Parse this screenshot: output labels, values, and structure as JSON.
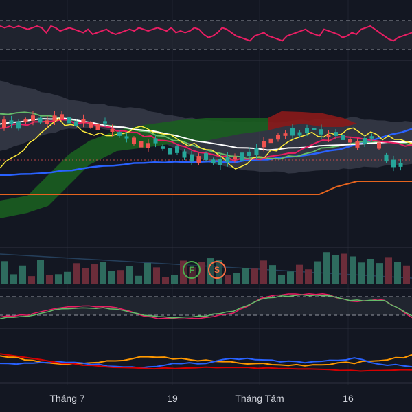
{
  "theme": {
    "background": "#131722",
    "pane_band": "#2a2e39",
    "separator": "#2f3240",
    "grid": "#1f2330",
    "rsi_line": "#e91e63",
    "candle_up": "#26a69a",
    "candle_down": "#ef5350",
    "cloud_bull": "#1b5e20",
    "cloud_bear": "#8b1a1a",
    "bb_band": "#4a4e5c",
    "ma_white": "#ffffff",
    "ma_green": "#66bb6a",
    "ma_pink": "#e91e63",
    "ma_yellow": "#ffeb3b",
    "ma_blue": "#2962ff",
    "ma_orange": "#e6641e",
    "volume_up": "#2e6b5e",
    "volume_down": "#6b2d3a",
    "stoch_k": "#e91e63",
    "stoch_d": "#66bb6a",
    "dmi_orange": "#ff9800",
    "dmi_blue": "#2962ff",
    "dmi_red": "#d50000"
  },
  "events": [
    {
      "letter": "F",
      "color": "#4caf50"
    },
    {
      "letter": "S",
      "color": "#ff7043"
    }
  ],
  "time_axis": [
    "Tháng 7",
    "19",
    "Tháng Tám",
    "16"
  ],
  "chart_data": [
    {
      "type": "line",
      "indicator": "oscillator",
      "series": [
        {
          "values": [
            64,
            63,
            64,
            63,
            64,
            63,
            62,
            63,
            64,
            63,
            60,
            64,
            63,
            61,
            62,
            63,
            62,
            61,
            60,
            62,
            59,
            60,
            61,
            62,
            60,
            59,
            60,
            61,
            62,
            61,
            63,
            62,
            61,
            62,
            63,
            62,
            61,
            63,
            60,
            61,
            60,
            61,
            63,
            62,
            59,
            57,
            58,
            60,
            63,
            62,
            60,
            58,
            57,
            56,
            55,
            58,
            59,
            60,
            58,
            57,
            56,
            55,
            58,
            59,
            60,
            61,
            62,
            60,
            59,
            58,
            62,
            61,
            60,
            59,
            57,
            58,
            60,
            59,
            62,
            63,
            64,
            62,
            60,
            58,
            56,
            55,
            57,
            58,
            59,
            60
          ]
        }
      ],
      "ylim": [
        40,
        80
      ]
    },
    {
      "type": "candlestick",
      "indicators": [
        "Ichimoku cloud",
        "Bollinger Bands",
        "moving averages"
      ],
      "ylim": [
        0,
        100
      ]
    },
    {
      "type": "bar",
      "indicator": "volume"
    },
    {
      "type": "line",
      "indicator": "stochastic",
      "ylim": [
        0,
        100
      ]
    },
    {
      "type": "line",
      "indicator": "DMI",
      "ylim": [
        0,
        60
      ]
    }
  ]
}
